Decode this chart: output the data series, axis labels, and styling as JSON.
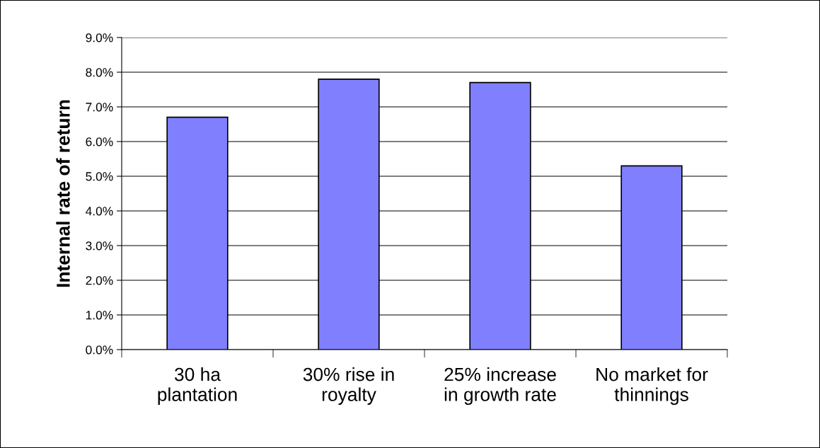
{
  "chart_data": {
    "type": "bar",
    "ylabel": "Internal rate of return",
    "categories": [
      "30 ha\nplantation",
      "30% rise in\nroyalty",
      "25% increase\nin growth rate",
      "No market for\nthinnings"
    ],
    "values": [
      6.7,
      7.8,
      7.7,
      5.3
    ],
    "color": "#8080ff",
    "ylim": [
      0,
      9
    ],
    "yticks": [
      {
        "value": 0,
        "label": "0.0%"
      },
      {
        "value": 1,
        "label": "1.0%"
      },
      {
        "value": 2,
        "label": "2.0%"
      },
      {
        "value": 3,
        "label": "3.0%"
      },
      {
        "value": 4,
        "label": "4.0%"
      },
      {
        "value": 5,
        "label": "5.0%"
      },
      {
        "value": 6,
        "label": "6.0%"
      },
      {
        "value": 7,
        "label": "7.0%"
      },
      {
        "value": 8,
        "label": "8.0%"
      },
      {
        "value": 9,
        "label": "9.0%"
      }
    ],
    "grid": "y",
    "legend": false
  }
}
